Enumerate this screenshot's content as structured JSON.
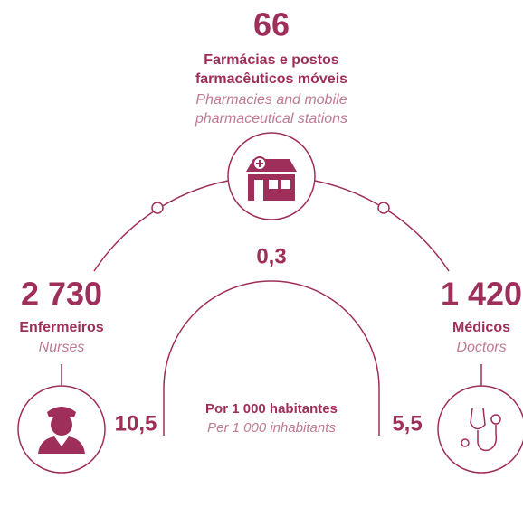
{
  "pharmacies": {
    "count": "66",
    "label_pt": [
      "Farmácias e postos",
      "farmacêuticos móveis"
    ],
    "label_en": [
      "Pharmacies and mobile",
      "pharmaceutical stations"
    ],
    "rate": "0,3"
  },
  "nurses": {
    "count": "2 730",
    "label_pt": "Enfermeiros",
    "label_en": "Nurses",
    "rate": "10,5"
  },
  "doctors": {
    "count": "1 420",
    "label_pt": "Médicos",
    "label_en": "Doctors",
    "rate": "5,5"
  },
  "center": {
    "label_pt": "Por 1 000 habitantes",
    "label_en": "Per 1 000 inhabitants"
  }
}
